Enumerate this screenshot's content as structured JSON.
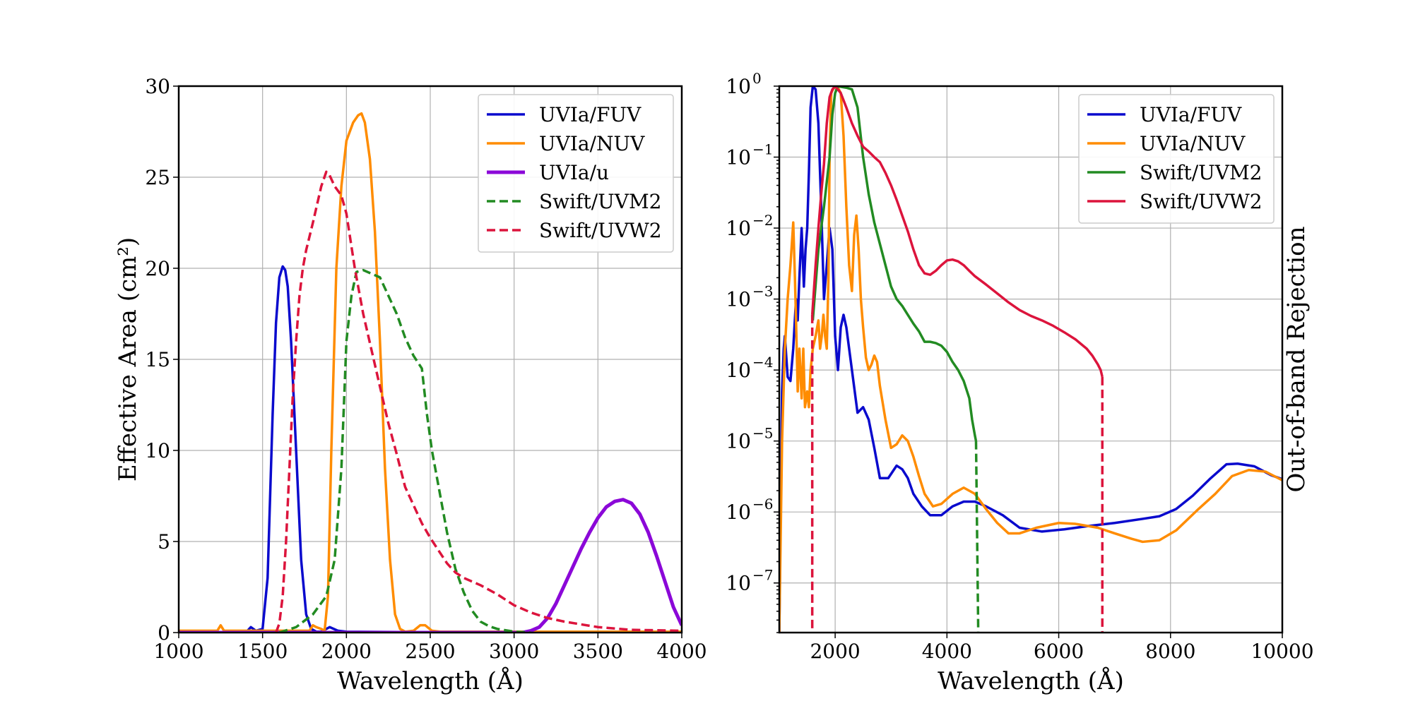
{
  "chart_data": [
    {
      "type": "line",
      "xlabel": "Wavelength (Å)",
      "ylabel": "Effective Area (cm²)",
      "xlim": [
        1000,
        4000
      ],
      "ylim": [
        0,
        30
      ],
      "yscale": "linear",
      "grid": true,
      "legend_position": "top-right",
      "x_ticks": [
        1000,
        1500,
        2000,
        2500,
        3000,
        3500,
        4000
      ],
      "x_tick_labels": [
        "1000",
        "1500",
        "2000",
        "2500",
        "3000",
        "3500",
        "4000"
      ],
      "y_ticks": [
        0,
        5,
        10,
        15,
        20,
        25,
        30
      ],
      "y_tick_labels": [
        "0",
        "5",
        "10",
        "15",
        "20",
        "25",
        "30"
      ],
      "series": [
        {
          "name": "UVIa/FUV",
          "color": "#0a0acd",
          "dash": "solid",
          "width": 3.5,
          "x": [
            1000,
            1400,
            1430,
            1460,
            1500,
            1530,
            1560,
            1580,
            1600,
            1620,
            1635,
            1650,
            1670,
            1700,
            1730,
            1760,
            1790,
            1820,
            1850,
            1900,
            1950,
            2000,
            2500,
            3000,
            4000
          ],
          "y": [
            0,
            0,
            0.3,
            0.1,
            0.2,
            3,
            12,
            17,
            19.5,
            20.1,
            19.9,
            19,
            16,
            10,
            4,
            1,
            0.2,
            0.05,
            0.05,
            0.3,
            0.1,
            0.05,
            0.02,
            0.02,
            0.02
          ]
        },
        {
          "name": "UVIa/NUV",
          "color": "#ff8c00",
          "dash": "solid",
          "width": 3.5,
          "x": [
            1000,
            1230,
            1250,
            1270,
            1300,
            1780,
            1800,
            1820,
            1850,
            1870,
            1890,
            1910,
            1940,
            1970,
            2000,
            2040,
            2070,
            2090,
            2110,
            2140,
            2170,
            2200,
            2230,
            2260,
            2290,
            2320,
            2350,
            2400,
            2440,
            2470,
            2510,
            2560,
            4000
          ],
          "y": [
            0.1,
            0.1,
            0.4,
            0.1,
            0.1,
            0.1,
            0.4,
            0.3,
            0.2,
            0.1,
            2,
            10,
            20,
            24.5,
            27,
            28,
            28.4,
            28.5,
            28,
            26,
            22,
            16,
            9,
            4,
            1,
            0.2,
            0.05,
            0.1,
            0.4,
            0.4,
            0.1,
            0.05,
            0.05
          ]
        },
        {
          "name": "UVIa/u",
          "color": "#8b08d8",
          "dash": "solid",
          "width": 5,
          "x": [
            1000,
            3050,
            3100,
            3150,
            3200,
            3250,
            3300,
            3350,
            3400,
            3450,
            3500,
            3550,
            3600,
            3650,
            3700,
            3750,
            3800,
            3850,
            3900,
            3950,
            4000
          ],
          "y": [
            0,
            0,
            0.1,
            0.3,
            0.8,
            1.6,
            2.6,
            3.6,
            4.6,
            5.5,
            6.3,
            6.9,
            7.2,
            7.3,
            7.1,
            6.5,
            5.5,
            4.2,
            2.8,
            1.4,
            0.4
          ]
        },
        {
          "name": "Swift/UVM2",
          "color": "#228b22",
          "dash": "dashed",
          "width": 3.5,
          "x": [
            1600,
            1700,
            1800,
            1880,
            1930,
            1970,
            2000,
            2030,
            2060,
            2100,
            2150,
            2200,
            2250,
            2300,
            2350,
            2400,
            2450,
            2480,
            2510,
            2550,
            2600,
            2650,
            2700,
            2750,
            2800,
            2850,
            2900,
            3000,
            3100
          ],
          "y": [
            0,
            0.3,
            1,
            2,
            4,
            9,
            16,
            18.5,
            19.8,
            19.9,
            19.7,
            19.5,
            18.5,
            17.5,
            16.2,
            15.2,
            14.5,
            12,
            10,
            8,
            5.5,
            3.5,
            2.2,
            1.2,
            0.6,
            0.35,
            0.2,
            0.05,
            0
          ]
        },
        {
          "name": "Swift/UVW2",
          "color": "#dc143c",
          "dash": "dashed",
          "width": 3.5,
          "x": [
            1580,
            1600,
            1620,
            1640,
            1660,
            1680,
            1700,
            1720,
            1740,
            1760,
            1800,
            1850,
            1880,
            1900,
            1930,
            1970,
            2000,
            2050,
            2100,
            2150,
            2200,
            2250,
            2300,
            2350,
            2400,
            2450,
            2500,
            2550,
            2600,
            2650,
            2700,
            2750,
            2800,
            2900,
            3000,
            3100,
            3200,
            3300,
            3500,
            3700,
            4000
          ],
          "y": [
            0,
            0.5,
            2,
            5,
            9,
            13,
            16,
            18.5,
            20,
            21,
            22.5,
            24.5,
            25.3,
            25.1,
            24.5,
            24,
            23,
            20,
            17.5,
            15.5,
            13.5,
            11.5,
            9.8,
            8,
            7,
            6,
            5.2,
            4.5,
            3.8,
            3.3,
            3,
            2.8,
            2.6,
            2.1,
            1.5,
            1.1,
            0.8,
            0.6,
            0.3,
            0.15,
            0.1
          ]
        }
      ]
    },
    {
      "type": "line",
      "xlabel": "Wavelength (Å)",
      "ylabel": "Out-of-band Rejection",
      "xlim": [
        1000,
        10000
      ],
      "ylim": [
        2e-08,
        1
      ],
      "yscale": "log",
      "grid": true,
      "legend_position": "top-right",
      "x_ticks": [
        2000,
        4000,
        6000,
        8000,
        10000
      ],
      "x_tick_labels": [
        "2000",
        "4000",
        "6000",
        "8000",
        "10000"
      ],
      "y_ticks": [
        1,
        0.1,
        0.01,
        0.001,
        0.0001,
        1e-05,
        1e-06,
        1e-07
      ],
      "y_tick_bases": [
        "10",
        "10",
        "10",
        "10",
        "10",
        "10",
        "10",
        "10"
      ],
      "y_tick_exponents": [
        "0",
        "−1",
        "−2",
        "−3",
        "−4",
        "−5",
        "−6",
        "−7"
      ],
      "series": [
        {
          "name": "UVIa/FUV",
          "color": "#0a0acd",
          "dash": "solid",
          "width": 3.5,
          "x": [
            1000,
            1050,
            1080,
            1100,
            1150,
            1200,
            1250,
            1300,
            1330,
            1360,
            1400,
            1440,
            1470,
            1500,
            1530,
            1560,
            1600,
            1650,
            1700,
            1750,
            1800,
            1850,
            1900,
            1950,
            2000,
            2050,
            2100,
            2150,
            2200,
            2300,
            2400,
            2500,
            2600,
            2700,
            2800,
            2950,
            3100,
            3200,
            3300,
            3400,
            3550,
            3700,
            3900,
            4100,
            4300,
            4500,
            4700,
            5000,
            5300,
            5700,
            6100,
            6500,
            7000,
            7500,
            7800,
            8100,
            8400,
            8700,
            9000,
            9200,
            9500,
            9800,
            10000
          ],
          "y": [
            2e-08,
            5e-05,
            0.0002,
            0.0003,
            8e-05,
            7e-05,
            0.0002,
            0.001,
            0.0005,
            0.002,
            0.01,
            0.0015,
            0.005,
            0.01,
            0.06,
            0.5,
            1,
            0.9,
            0.3,
            0.02,
            0.001,
            0.003,
            0.01,
            0.005,
            0.0003,
            0.0001,
            0.0004,
            0.0006,
            0.0004,
            0.0001,
            2.5e-05,
            3e-05,
            2e-05,
            8e-06,
            3e-06,
            3e-06,
            4.5e-06,
            4e-06,
            3e-06,
            1.8e-06,
            1.2e-06,
            9e-07,
            9e-07,
            1.2e-06,
            1.4e-06,
            1.4e-06,
            1.2e-06,
            9e-07,
            6e-07,
            5.3e-07,
            5.7e-07,
            6.3e-07,
            7e-07,
            8e-07,
            8.7e-07,
            1.1e-06,
            1.7e-06,
            2.9e-06,
            4.7e-06,
            4.8e-06,
            4.4e-06,
            3.3e-06,
            2.9e-06
          ]
        },
        {
          "name": "UVIa/NUV",
          "color": "#ff8c00",
          "dash": "solid",
          "width": 3.5,
          "x": [
            1000,
            1050,
            1100,
            1150,
            1200,
            1250,
            1280,
            1300,
            1330,
            1360,
            1400,
            1430,
            1460,
            1500,
            1530,
            1560,
            1600,
            1650,
            1700,
            1730,
            1760,
            1790,
            1820,
            1850,
            1880,
            1900,
            1930,
            1960,
            2000,
            2050,
            2100,
            2150,
            2200,
            2250,
            2300,
            2340,
            2380,
            2420,
            2460,
            2500,
            2550,
            2600,
            2650,
            2700,
            2750,
            2800,
            2900,
            3000,
            3100,
            3200,
            3300,
            3400,
            3500,
            3600,
            3750,
            3900,
            4100,
            4300,
            4500,
            4700,
            4900,
            5100,
            5300,
            5600,
            6000,
            6300,
            6700,
            7000,
            7300,
            7500,
            7800,
            8100,
            8500,
            8800,
            9100,
            9400,
            9700,
            10000
          ],
          "y": [
            2e-08,
            1e-05,
            0.0002,
            0.001,
            0.003,
            0.012,
            0.002,
            0.0005,
            5e-05,
            0.0002,
            4e-05,
            0.0002,
            3e-05,
            5e-05,
            3e-05,
            0.0001,
            0.0002,
            0.0003,
            0.0005,
            0.0002,
            0.0003,
            0.0006,
            0.0003,
            0.0002,
            0.002,
            0.1,
            0.8,
            0.9,
            1,
            0.95,
            0.8,
            0.2,
            0.02,
            0.003,
            0.0013,
            0.008,
            0.015,
            0.005,
            0.001,
            0.0004,
            0.00015,
            0.0001,
            0.00012,
            0.00016,
            0.00013,
            6e-05,
            2e-05,
            8e-06,
            9e-06,
            1.2e-05,
            1e-05,
            6e-06,
            3.2e-06,
            1.8e-06,
            1.2e-06,
            1.3e-06,
            1.8e-06,
            2.2e-06,
            1.8e-06,
            1.1e-06,
            7e-07,
            5e-07,
            5e-07,
            6e-07,
            7e-07,
            6.8e-07,
            6e-07,
            5e-07,
            4.2e-07,
            3.8e-07,
            4e-07,
            5.5e-07,
            1.1e-06,
            1.8e-06,
            3.2e-06,
            3.9e-06,
            3.7e-06,
            2.8e-06
          ]
        },
        {
          "name": "Swift/UVM2",
          "color": "#228b22",
          "dash": "solid",
          "width": 3.5,
          "dashed_tail": {
            "x": [
              4520,
              4560
            ],
            "y": [
              1e-05,
              2e-08
            ]
          },
          "x": [
            1600,
            1700,
            1800,
            1900,
            1950,
            2000,
            2050,
            2100,
            2200,
            2300,
            2400,
            2500,
            2600,
            2700,
            2800,
            2900,
            3000,
            3100,
            3200,
            3300,
            3400,
            3500,
            3600,
            3650,
            3700,
            3800,
            3900,
            4000,
            4100,
            4200,
            4300,
            4400,
            4450,
            4500,
            4520
          ],
          "y": [
            0.0005,
            0.005,
            0.02,
            0.1,
            0.4,
            0.8,
            1,
            0.98,
            0.95,
            0.9,
            0.5,
            0.1,
            0.03,
            0.012,
            0.006,
            0.003,
            0.0015,
            0.001,
            0.0008,
            0.0006,
            0.00045,
            0.00035,
            0.00025,
            0.00025,
            0.00025,
            0.00024,
            0.00022,
            0.00018,
            0.00013,
            0.0001,
            7e-05,
            4e-05,
            2e-05,
            1.2e-05,
            1e-05
          ]
        },
        {
          "name": "Swift/UVW2",
          "color": "#dc143c",
          "dash": "solid",
          "width": 3.5,
          "dashed_tails": [
            {
              "x": [
                1590,
                1590
              ],
              "y": [
                0.0006,
                2e-08
              ]
            },
            {
              "x": [
                6780,
                6780
              ],
              "y": [
                8e-05,
                2e-08
              ]
            }
          ],
          "x": [
            1590,
            1650,
            1700,
            1750,
            1800,
            1850,
            1900,
            1950,
            2000,
            2100,
            2200,
            2300,
            2400,
            2500,
            2600,
            2700,
            2800,
            2900,
            3000,
            3100,
            3200,
            3300,
            3400,
            3500,
            3600,
            3700,
            3800,
            3900,
            4000,
            4100,
            4200,
            4300,
            4400,
            4500,
            4700,
            4900,
            5100,
            5300,
            5500,
            5700,
            5900,
            6100,
            6300,
            6500,
            6600,
            6700,
            6750,
            6780
          ],
          "y": [
            0.0006,
            0.003,
            0.01,
            0.03,
            0.08,
            0.3,
            0.7,
            0.9,
            1,
            0.8,
            0.5,
            0.3,
            0.2,
            0.14,
            0.12,
            0.1,
            0.085,
            0.06,
            0.04,
            0.025,
            0.015,
            0.009,
            0.005,
            0.003,
            0.0023,
            0.0022,
            0.0025,
            0.003,
            0.0035,
            0.0036,
            0.0034,
            0.003,
            0.0025,
            0.0021,
            0.0016,
            0.0012,
            0.0009,
            0.0007,
            0.00058,
            0.0005,
            0.00042,
            0.00034,
            0.00027,
            0.0002,
            0.00016,
            0.00012,
            0.0001,
            8e-05
          ]
        }
      ]
    }
  ]
}
